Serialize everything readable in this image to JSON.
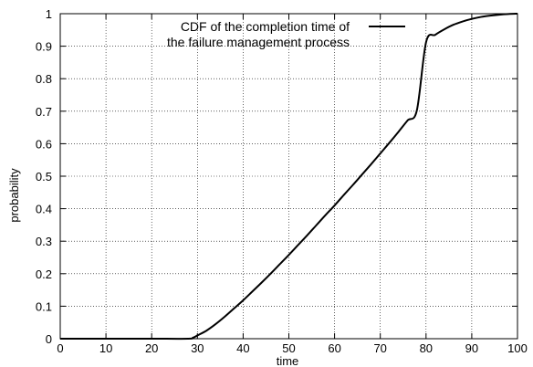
{
  "chart_data": {
    "type": "line",
    "xlabel": "time",
    "ylabel": "probability",
    "xlim": [
      0,
      100
    ],
    "ylim": [
      0,
      1
    ],
    "xticks": [
      0,
      10,
      20,
      30,
      40,
      50,
      60,
      70,
      80,
      90,
      100
    ],
    "yticks": [
      0,
      0.1,
      0.2,
      0.3,
      0.4,
      0.5,
      0.6,
      0.7,
      0.8,
      0.9,
      1
    ],
    "grid": true,
    "legend_position": "top-right",
    "series": [
      {
        "name": "CDF of the completion time of the failure management process",
        "legend_lines": [
          "CDF of the completion time of",
          "the failure management process"
        ],
        "color": "#000000",
        "x": [
          0,
          10,
          20,
          28,
          29,
          30,
          32,
          34,
          36,
          38,
          40,
          42,
          44,
          46,
          48,
          50,
          52,
          54,
          56,
          58,
          60,
          62,
          64,
          66,
          68,
          70,
          72,
          74,
          76,
          78,
          80,
          82,
          84,
          86,
          88,
          90,
          92,
          94,
          96,
          98,
          100
        ],
        "y": [
          0,
          0,
          0,
          0,
          0.003,
          0.01,
          0.025,
          0.045,
          0.068,
          0.093,
          0.118,
          0.145,
          0.172,
          0.2,
          0.229,
          0.258,
          0.288,
          0.318,
          0.349,
          0.38,
          0.41,
          0.442,
          0.473,
          0.505,
          0.537,
          0.57,
          0.603,
          0.637,
          0.672,
          0.703,
          0.912,
          0.935,
          0.952,
          0.966,
          0.976,
          0.984,
          0.99,
          0.994,
          0.997,
          0.999,
          1
        ]
      }
    ]
  }
}
